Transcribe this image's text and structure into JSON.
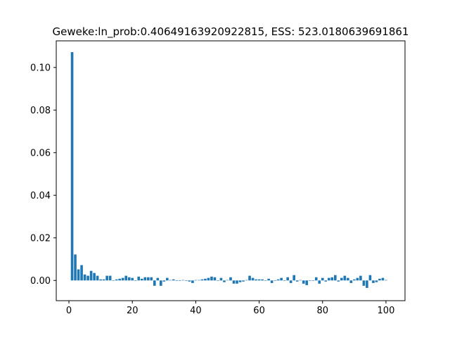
{
  "chart_data": {
    "type": "bar",
    "title": "Geweke:ln_prob:0.40649163920922815, ESS: 523.0180639691861",
    "xlabel": "",
    "ylabel": "",
    "xlim": [
      -4,
      106
    ],
    "ylim": [
      -0.0095,
      0.1125
    ],
    "grid": false,
    "bar_color": "#1f77b4",
    "x_ticks": [
      0,
      20,
      40,
      60,
      80,
      100
    ],
    "x_tick_labels": [
      "0",
      "20",
      "40",
      "60",
      "80",
      "100"
    ],
    "y_ticks": [
      0.0,
      0.02,
      0.04,
      0.06,
      0.08,
      0.1
    ],
    "y_tick_labels": [
      "0.00",
      "0.02",
      "0.04",
      "0.06",
      "0.08",
      "0.10"
    ],
    "x": [
      1,
      2,
      3,
      4,
      5,
      6,
      7,
      8,
      9,
      10,
      11,
      12,
      13,
      14,
      15,
      16,
      17,
      18,
      19,
      20,
      21,
      22,
      23,
      24,
      25,
      26,
      27,
      28,
      29,
      30,
      31,
      32,
      33,
      34,
      35,
      36,
      37,
      38,
      39,
      40,
      41,
      42,
      43,
      44,
      45,
      46,
      47,
      48,
      49,
      50,
      51,
      52,
      53,
      54,
      55,
      56,
      57,
      58,
      59,
      60,
      61,
      62,
      63,
      64,
      65,
      66,
      67,
      68,
      69,
      70,
      71,
      72,
      73,
      74,
      75,
      76,
      77,
      78,
      79,
      80,
      81,
      82,
      83,
      84,
      85,
      86,
      87,
      88,
      89,
      90,
      91,
      92,
      93,
      94,
      95,
      96,
      97,
      98,
      99,
      100
    ],
    "values": [
      0.1072,
      0.0122,
      0.0052,
      0.0072,
      0.0028,
      0.0022,
      0.0045,
      0.0035,
      0.0022,
      0.0005,
      0.0005,
      0.0022,
      0.0022,
      -0.0002,
      0.0005,
      0.0008,
      0.0012,
      0.0022,
      0.0015,
      0.0012,
      -0.0002,
      0.0018,
      0.0008,
      0.0015,
      0.0015,
      0.0015,
      -0.0025,
      0.0012,
      -0.0025,
      -0.0005,
      0.0012,
      0.0002,
      0.0005,
      -0.0002,
      -0.0002,
      0.0002,
      -0.0002,
      -0.0005,
      -0.0012,
      0.0002,
      0.0002,
      0.0005,
      0.0008,
      0.0012,
      0.0018,
      0.0015,
      -0.0002,
      0.0012,
      -0.0008,
      0.0002,
      0.0015,
      -0.0015,
      -0.0015,
      -0.0008,
      -0.0005,
      0.0002,
      0.0022,
      0.0012,
      0.0005,
      0.0005,
      0.0005,
      -0.0002,
      0.0008,
      -0.0012,
      -0.0002,
      0.0005,
      0.0012,
      -0.0002,
      0.0015,
      -0.0012,
      0.0025,
      -0.0005,
      0.0002,
      -0.0015,
      -0.0022,
      -0.0002,
      -0.0002,
      0.0015,
      -0.0015,
      0.0012,
      -0.0005,
      0.0012,
      0.0015,
      0.0025,
      -0.0005,
      0.0012,
      0.0022,
      0.0012,
      -0.0012,
      0.0005,
      0.0012,
      0.0022,
      -0.0025,
      -0.0035,
      0.0025,
      -0.0012,
      -0.0008,
      0.0008,
      0.0012,
      0.0002
    ]
  }
}
